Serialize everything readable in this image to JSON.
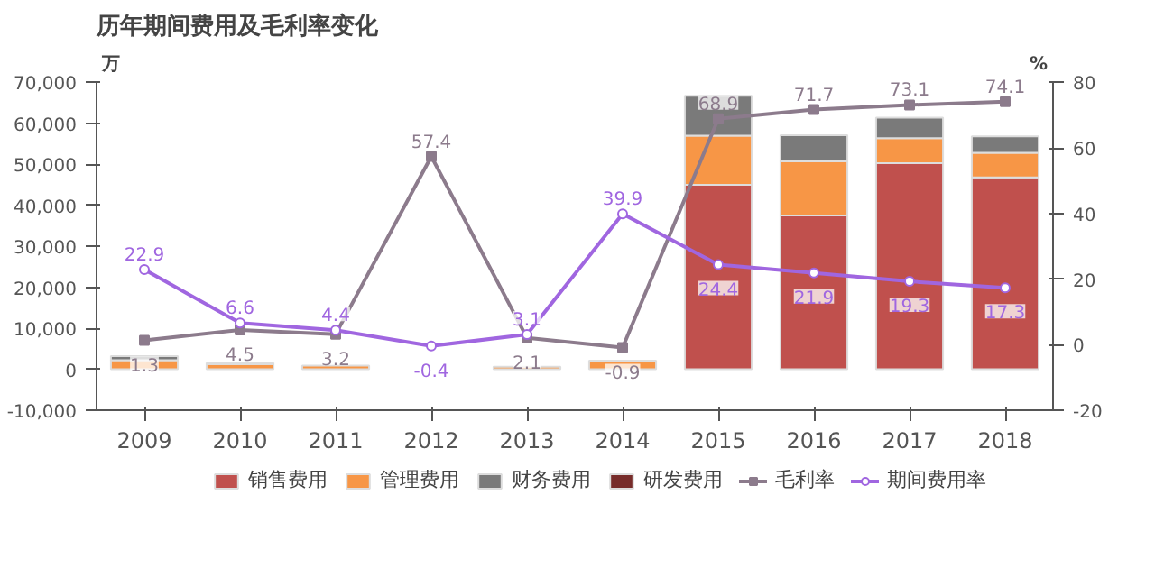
{
  "chart_data": {
    "type": "bar",
    "title": "历年期间费用及毛利率变化",
    "ylabel": "万",
    "y2label": "%",
    "categories": [
      "2009",
      "2010",
      "2011",
      "2012",
      "2013",
      "2014",
      "2015",
      "2016",
      "2017",
      "2018"
    ],
    "stacked": true,
    "series": [
      {
        "name": "销售费用",
        "color": "#c0504d",
        "values": [
          null,
          null,
          null,
          null,
          null,
          null,
          45000,
          37500,
          50300,
          46800
        ]
      },
      {
        "name": "管理费用",
        "color": "#f79646",
        "values": [
          2200,
          1200,
          900,
          null,
          600,
          2100,
          12000,
          13200,
          6100,
          6000
        ]
      },
      {
        "name": "财务费用",
        "color": "#7a7a7a",
        "values": [
          1000,
          300,
          null,
          null,
          null,
          null,
          9700,
          6400,
          5000,
          4000
        ]
      },
      {
        "name": "研发费用",
        "color": "#772c2a",
        "values": [
          null,
          null,
          null,
          null,
          null,
          null,
          null,
          null,
          null,
          null
        ]
      },
      {
        "name": "毛利率",
        "type": "line",
        "axis": "y2",
        "color": "#8c7b8c",
        "marker": "square",
        "values": [
          1.3,
          4.5,
          3.2,
          57.4,
          2.1,
          -0.9,
          68.9,
          71.7,
          73.1,
          74.1
        ],
        "value_labels": [
          "1.3",
          "4.5",
          "3.2",
          "57.4",
          "2.1",
          "-0.9",
          "68.9",
          "71.7",
          "73.1",
          "74.1"
        ]
      },
      {
        "name": "期间费用率",
        "type": "line",
        "axis": "y2",
        "color": "#a066e0",
        "marker": "circle",
        "values": [
          22.9,
          6.6,
          4.4,
          -0.4,
          3.1,
          39.9,
          24.4,
          21.9,
          19.3,
          17.3
        ],
        "value_labels": [
          "22.9",
          "6.6",
          "4.4",
          "-0.4",
          "3.1",
          "39.9",
          "24.4",
          "21.9",
          "19.3",
          "17.3"
        ]
      }
    ],
    "ylim": [
      -10000,
      70000
    ],
    "yticks": [
      {
        "value": -10000,
        "label": "-10,000"
      },
      {
        "value": 0,
        "label": "0"
      },
      {
        "value": 10000,
        "label": "10,000"
      },
      {
        "value": 20000,
        "label": "20,000"
      },
      {
        "value": 30000,
        "label": "30,000"
      },
      {
        "value": 40000,
        "label": "40,000"
      },
      {
        "value": 50000,
        "label": "50,000"
      },
      {
        "value": 60000,
        "label": "60,000"
      },
      {
        "value": 70000,
        "label": "70,000"
      }
    ],
    "y2lim": [
      -20,
      80
    ],
    "y2ticks": [
      -20,
      0,
      20,
      40,
      60,
      80
    ],
    "grid": false,
    "legend": "bottom"
  }
}
